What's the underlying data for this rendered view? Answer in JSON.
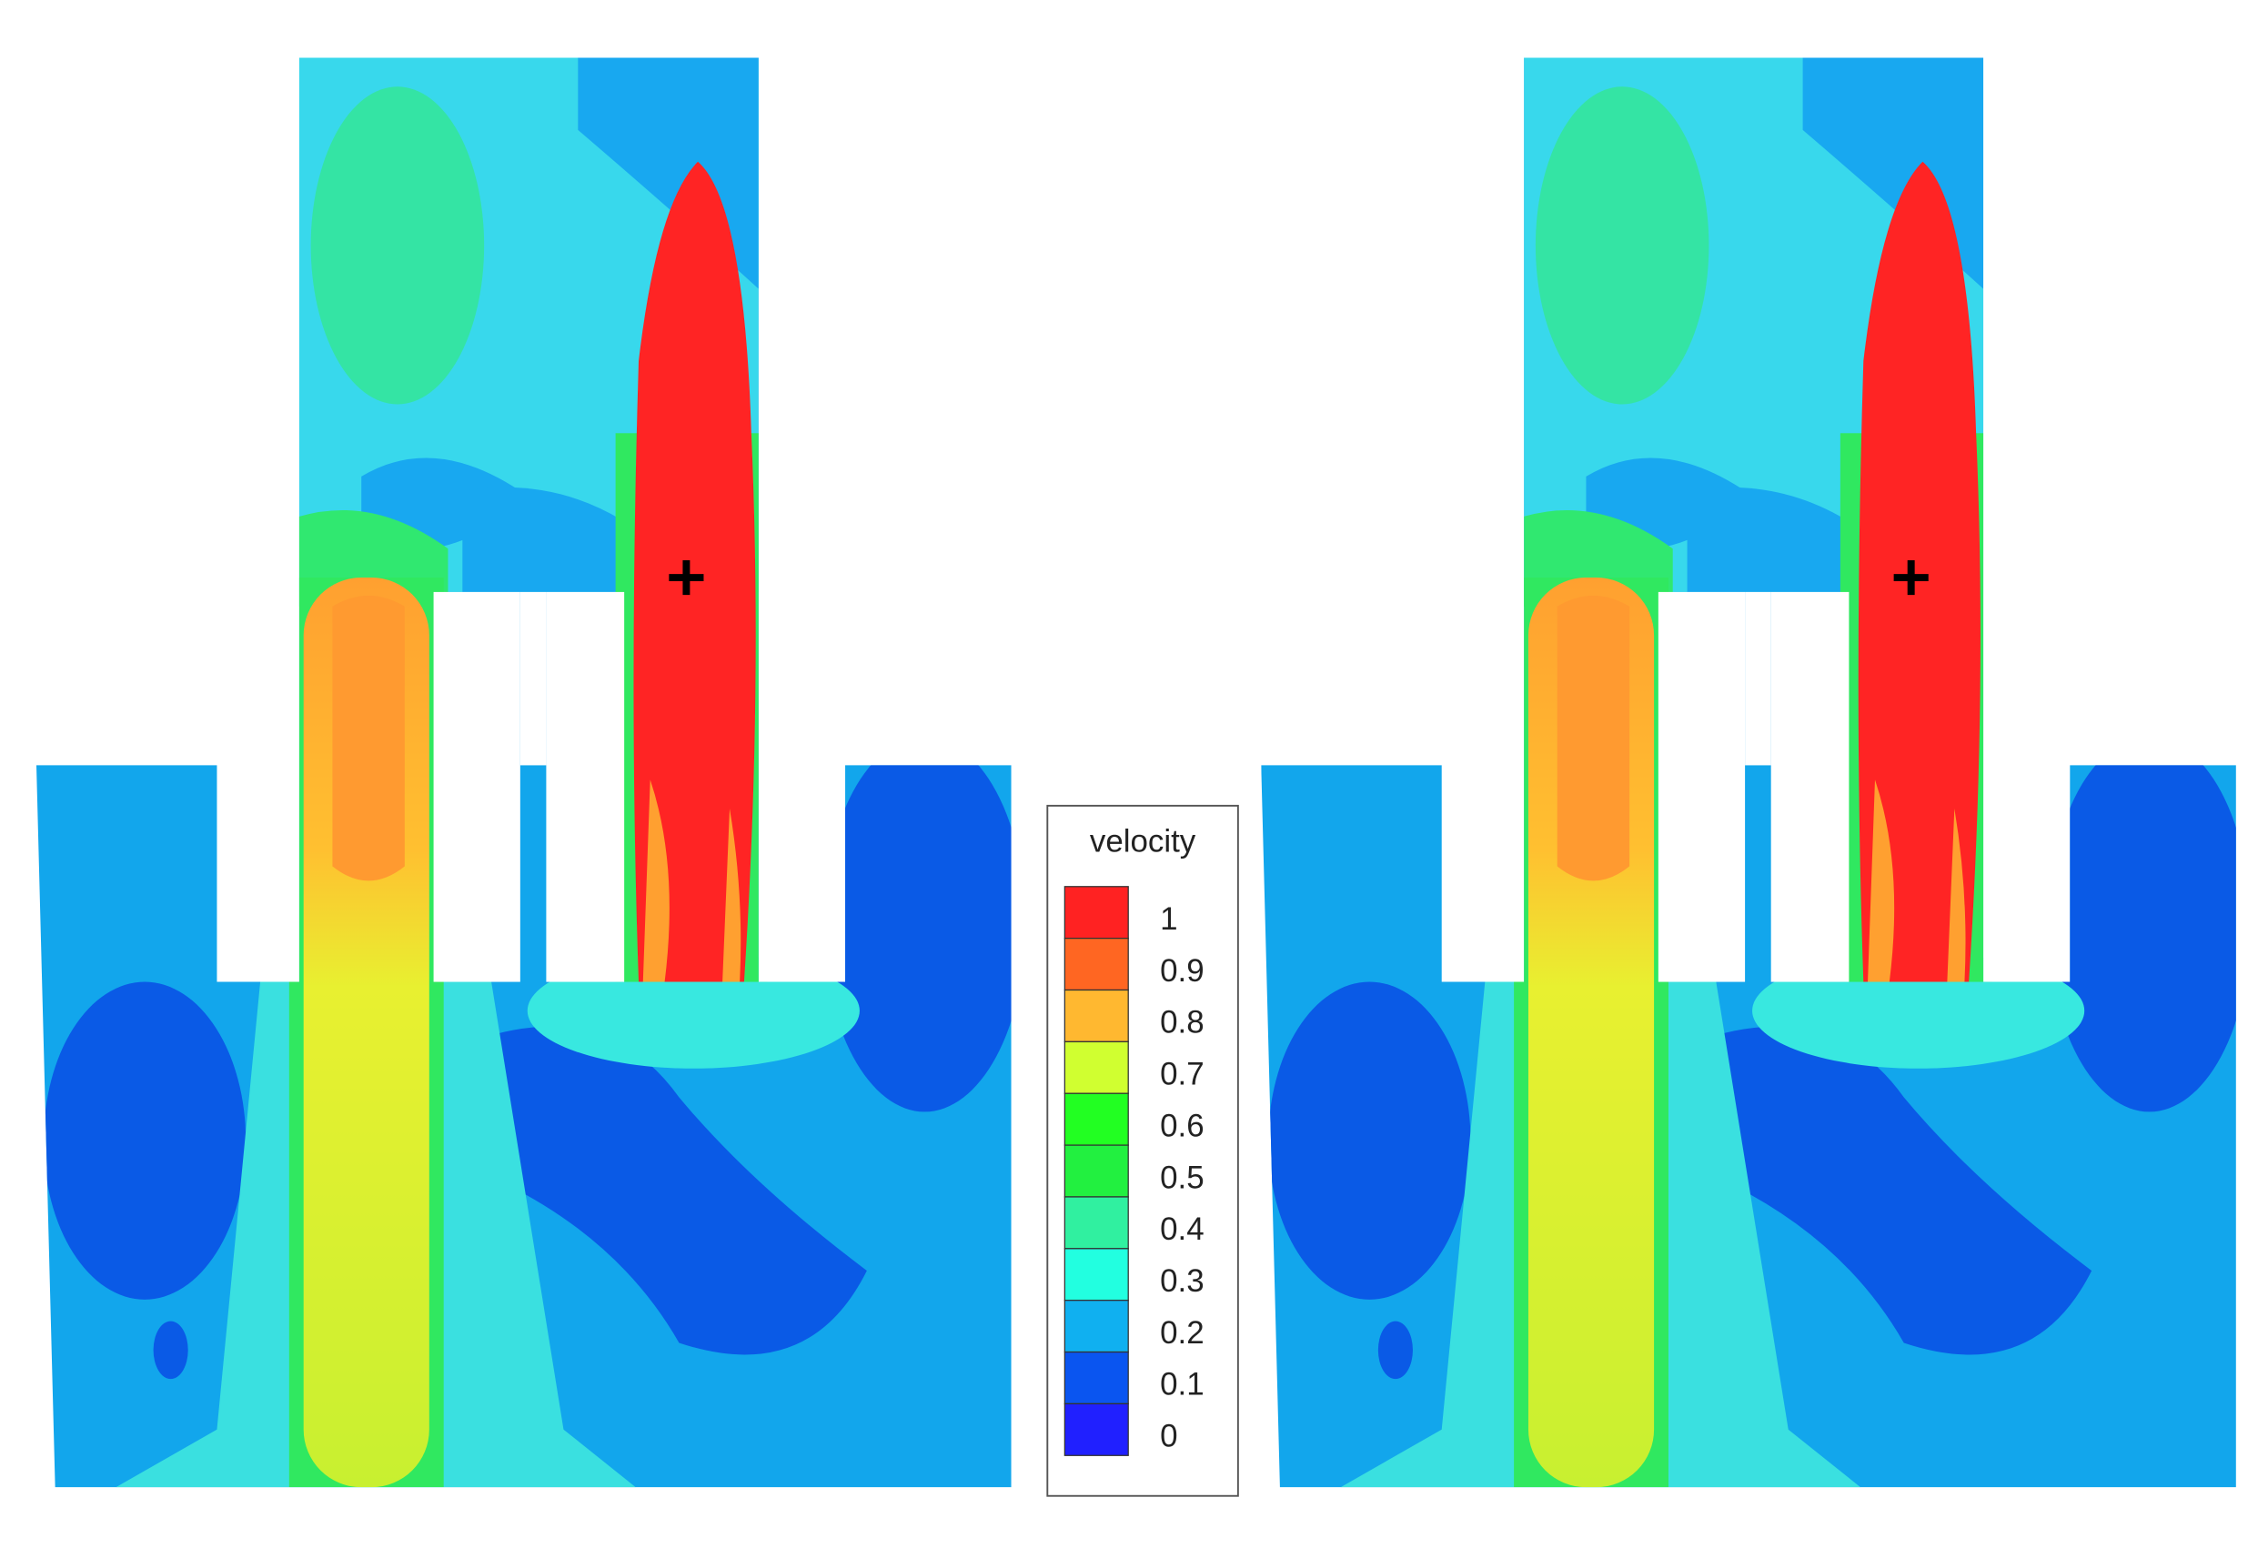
{
  "legend": {
    "title": "velocity",
    "levels": [
      {
        "label": "1",
        "color": "#ff2222"
      },
      {
        "label": "0.9",
        "color": "#ff6622"
      },
      {
        "label": "0.8",
        "color": "#ffb830"
      },
      {
        "label": "0.7",
        "color": "#d0ff30"
      },
      {
        "label": "0.6",
        "color": "#22ff22"
      },
      {
        "label": "0.5",
        "color": "#22f040"
      },
      {
        "label": "0.4",
        "color": "#30f0a0"
      },
      {
        "label": "0.3",
        "color": "#22ffe0"
      },
      {
        "label": "0.2",
        "color": "#10b0f0"
      },
      {
        "label": "0.1",
        "color": "#0a55f0"
      },
      {
        "label": "0",
        "color": "#2020ff"
      }
    ]
  }
}
